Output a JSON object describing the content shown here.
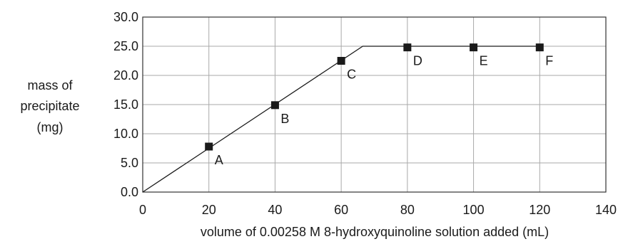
{
  "chart_data": {
    "type": "line",
    "title": "",
    "xlabel": "volume of 0.00258 M 8-hydroxyquinoline solution added (mL)",
    "ylabel": [
      "mass of",
      "precipitate",
      "(mg)"
    ],
    "xlim": [
      0,
      140
    ],
    "ylim": [
      0,
      30
    ],
    "x_ticks": [
      "0",
      "20",
      "40",
      "60",
      "80",
      "100",
      "120",
      "140"
    ],
    "y_ticks": [
      "0.0",
      "5.0",
      "10.0",
      "15.0",
      "20.0",
      "25.0",
      "30.0"
    ],
    "grid": true,
    "line": {
      "x": [
        0,
        66.5,
        120
      ],
      "y": [
        0,
        25,
        25
      ]
    },
    "points": [
      {
        "label": "A",
        "x": 20,
        "y": 7.8
      },
      {
        "label": "B",
        "x": 40,
        "y": 14.9
      },
      {
        "label": "C",
        "x": 60,
        "y": 22.5
      },
      {
        "label": "D",
        "x": 80,
        "y": 24.8
      },
      {
        "label": "E",
        "x": 100,
        "y": 24.8
      },
      {
        "label": "F",
        "x": 120,
        "y": 24.8
      }
    ]
  }
}
